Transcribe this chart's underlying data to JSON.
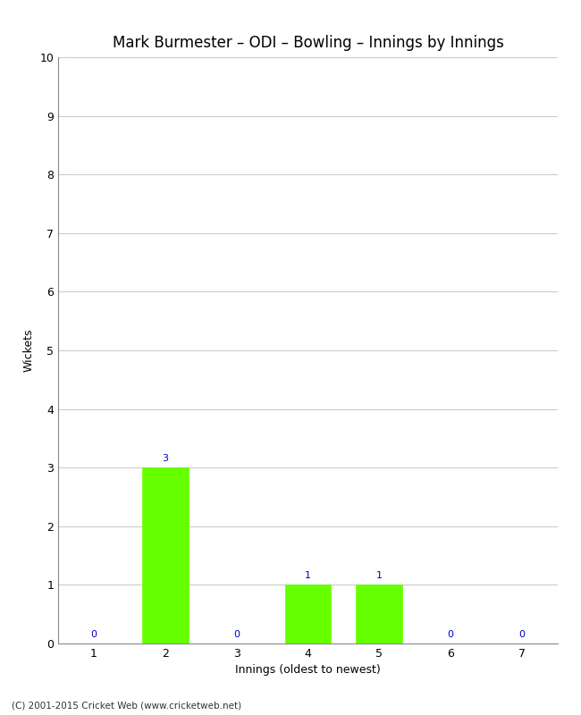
{
  "title": "Mark Burmester – ODI – Bowling – Innings by Innings",
  "xlabel": "Innings (oldest to newest)",
  "ylabel": "Wickets",
  "categories": [
    1,
    2,
    3,
    4,
    5,
    6,
    7
  ],
  "values": [
    0,
    3,
    0,
    1,
    1,
    0,
    0
  ],
  "bar_color": "#66ff00",
  "bar_edge_color": "#66ff00",
  "ylim": [
    0,
    10
  ],
  "yticks": [
    0,
    1,
    2,
    3,
    4,
    5,
    6,
    7,
    8,
    9,
    10
  ],
  "annotation_color": "#0000cc",
  "annotation_fontsize": 8,
  "title_fontsize": 12,
  "label_fontsize": 9,
  "tick_fontsize": 9,
  "background_color": "#ffffff",
  "grid_color": "#cccccc",
  "footer": "(C) 2001-2015 Cricket Web (www.cricketweb.net)"
}
